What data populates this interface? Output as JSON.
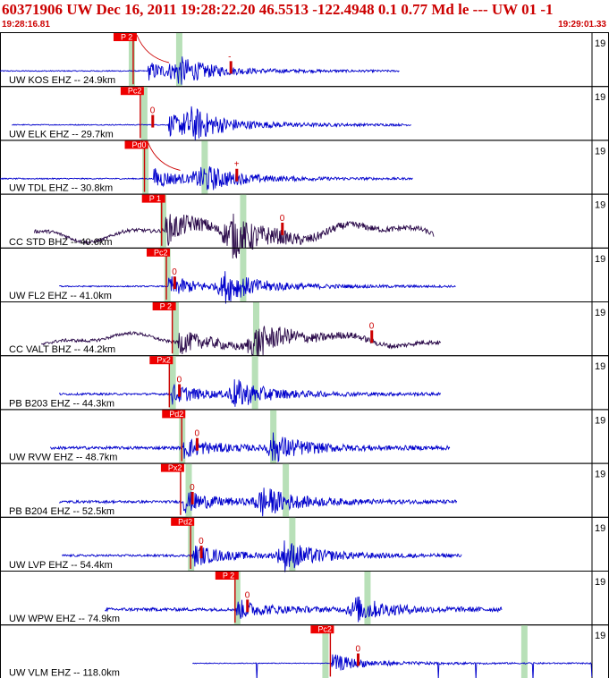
{
  "header": {
    "title": "60371906 UW Dec 16, 2011 19:28:22.20    46.5513 -122.4948  0.1 0.77 Md le --- UW 01   -1",
    "start_time": "19:28:16.81",
    "end_time": "19:29:01.33"
  },
  "colors": {
    "header_text": "#cc0000",
    "trace_ehz": "#0000cc",
    "trace_bhz": "#2b0a4a",
    "pick_box": "#ee0000",
    "phase_band": "#b8e0b8"
  },
  "chart_data": {
    "type": "line",
    "title": "60371906 UW Dec 16, 2011 19:28:22.20    46.5513 -122.4948  0.1 0.77 Md le --- UW 01   -1",
    "x_range": [
      "19:28:16.81",
      "19:29:01.33"
    ],
    "right_tick_label": "19",
    "series": [
      {
        "label": "UW KOS EHZ -- 24.9km",
        "color": "#0000cc",
        "start": 0.0,
        "end": 0.675,
        "pick": "P 2",
        "pick_x": 0.225,
        "band1": 0.222,
        "band2": 0.302,
        "coda": 0.39,
        "coda_mark": "-",
        "amp": 0.55,
        "noise": 0.04,
        "wander": 0,
        "onset": 0.25,
        "burst": 0.3,
        "arc": true
      },
      {
        "label": "UW ELK EHZ -- 29.7km",
        "color": "#0000cc",
        "start": 0.02,
        "end": 0.695,
        "pick": "Pc2",
        "pick_x": 0.237,
        "band1": 0.243,
        "band2": 0.0,
        "coda": 0.258,
        "coda_mark": "0",
        "amp": 0.65,
        "noise": 0.03,
        "wander": 0,
        "onset": 0.285,
        "burst": 0.32,
        "arc": false
      },
      {
        "label": "UW TDL EHZ -- 30.8km",
        "color": "#0000cc",
        "start": 0.0,
        "end": 0.697,
        "pick": "Pd0",
        "pick_x": 0.244,
        "band1": 0.245,
        "band2": 0.345,
        "coda": 0.4,
        "coda_mark": "+",
        "amp": 0.6,
        "noise": 0.04,
        "wander": 0,
        "onset": 0.26,
        "burst": 0.34,
        "arc": true
      },
      {
        "label": "CC STD BHZ -- 40.6km",
        "color": "#2b0a4a",
        "start": 0.058,
        "end": 0.733,
        "pick": "P 1",
        "pick_x": 0.273,
        "band1": 0.275,
        "band2": 0.41,
        "coda": 0.477,
        "coda_mark": "0",
        "amp": 0.9,
        "noise": 0.08,
        "wander": 0.3,
        "onset": 0.28,
        "burst": 0.39,
        "arc": false
      },
      {
        "label": "UW FL2 EHZ -- 41.0km",
        "color": "#0000cc",
        "start": 0.1,
        "end": 0.77,
        "pick": "Pc2",
        "pick_x": 0.281,
        "band1": 0.282,
        "band2": 0.41,
        "coda": 0.295,
        "coda_mark": "0",
        "amp": 0.65,
        "noise": 0.04,
        "wander": 0,
        "onset": 0.285,
        "burst": 0.38,
        "arc": false
      },
      {
        "label": "CC VALT BHZ -- 44.2km",
        "color": "#2b0a4a",
        "start": 0.07,
        "end": 0.745,
        "pick": "P 2",
        "pick_x": 0.291,
        "band1": 0.296,
        "band2": 0.432,
        "coda": 0.628,
        "coda_mark": "0",
        "amp": 0.7,
        "noise": 0.09,
        "wander": 0.28,
        "onset": 0.3,
        "burst": 0.43,
        "arc": false
      },
      {
        "label": "PB B203 EHZ -- 44.3km",
        "color": "#0000cc",
        "start": 0.1,
        "end": 0.745,
        "pick": "Px2",
        "pick_x": 0.286,
        "band1": 0.291,
        "band2": 0.43,
        "coda": 0.303,
        "coda_mark": "0",
        "amp": 0.6,
        "noise": 0.07,
        "wander": 0,
        "onset": 0.29,
        "burst": 0.395,
        "arc": false
      },
      {
        "label": "UW RVW EHZ -- 48.7km",
        "color": "#0000cc",
        "start": 0.085,
        "end": 0.76,
        "pick": "Pd2",
        "pick_x": 0.307,
        "band1": 0.307,
        "band2": 0.461,
        "coda": 0.333,
        "coda_mark": "0",
        "amp": 0.6,
        "noise": 0.1,
        "wander": 0,
        "onset": 0.31,
        "burst": 0.46,
        "arc": false
      },
      {
        "label": "PB B204 EHZ -- 52.5km",
        "color": "#0000cc",
        "start": 0.1,
        "end": 0.772,
        "pick": "Px2",
        "pick_x": 0.305,
        "band1": 0.318,
        "band2": 0.482,
        "coda": 0.325,
        "coda_mark": "0",
        "amp": 0.65,
        "noise": 0.08,
        "wander": 0,
        "onset": 0.31,
        "burst": 0.44,
        "arc": false
      },
      {
        "label": "UW LVP EHZ -- 54.4km",
        "color": "#0000cc",
        "start": 0.105,
        "end": 0.78,
        "pick": "Pd2",
        "pick_x": 0.322,
        "band1": 0.322,
        "band2": 0.493,
        "coda": 0.34,
        "coda_mark": "0",
        "amp": 0.65,
        "noise": 0.07,
        "wander": 0,
        "onset": 0.325,
        "burst": 0.48,
        "arc": false
      },
      {
        "label": "UW WPW EHZ -- 74.9km",
        "color": "#0000cc",
        "start": 0.177,
        "end": 0.848,
        "pick": "P 2",
        "pick_x": 0.397,
        "band1": 0.4,
        "band2": 0.62,
        "coda": 0.418,
        "coda_mark": "0",
        "amp": 0.55,
        "noise": 0.12,
        "wander": 0,
        "onset": 0.4,
        "burst": 0.6,
        "arc": false
      },
      {
        "label": "UW VLM EHZ -- 118.0km",
        "color": "#0000cc",
        "start": 0.325,
        "end": 1.0,
        "pick": "Pc2",
        "pick_x": 0.558,
        "band1": 0.549,
        "band2": 0.885,
        "coda": 0.605,
        "coda_mark": "0",
        "amp": 0.55,
        "noise": 0.03,
        "wander": 0,
        "onset": 0.56,
        "burst": 0.0,
        "arc": false,
        "spiky": true
      }
    ]
  }
}
